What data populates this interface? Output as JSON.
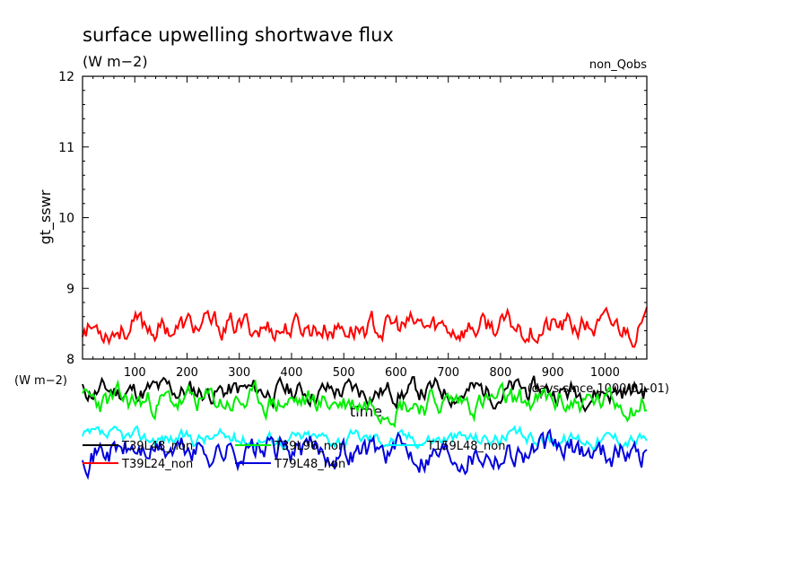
{
  "chart_data": {
    "type": "line",
    "title": "surface upwelling shortwave flux",
    "units": "(W m−2)",
    "units_lower": "(W m−2)",
    "tag": "non_Qobs",
    "ylabel": "gt_sswr",
    "xlabel": "time",
    "xlabel_extra": "(days since 1000-01-01)",
    "xlim": [
      0,
      1080
    ],
    "ylim": [
      8,
      12
    ],
    "xticks": [
      "100",
      "200",
      "300",
      "400",
      "500",
      "600",
      "700",
      "800",
      "900",
      "1000"
    ],
    "yticks": [
      "8",
      "9",
      "10",
      "11",
      "12"
    ],
    "grid": false,
    "legend_position": "below",
    "series": [
      {
        "name": "T39L48_non",
        "color": "#000000",
        "mean": 8.55,
        "amp": 0.18,
        "seed": 11,
        "region": "below"
      },
      {
        "name": "T39L96_non",
        "color": "#00ee00",
        "mean": 8.45,
        "amp": 0.2,
        "seed": 23,
        "region": "below"
      },
      {
        "name": "T159L48_non",
        "color": "#00ffff",
        "mean": 8.35,
        "amp": 0.12,
        "seed": 37,
        "region": "below"
      },
      {
        "name": "T39L24_non",
        "color": "#ff0000",
        "mean": 8.45,
        "amp": 0.14,
        "seed": 53,
        "region": "plot"
      },
      {
        "name": "T79L48_non",
        "color": "#0000dd",
        "mean": 8.25,
        "amp": 0.22,
        "seed": 71,
        "region": "below"
      }
    ]
  }
}
